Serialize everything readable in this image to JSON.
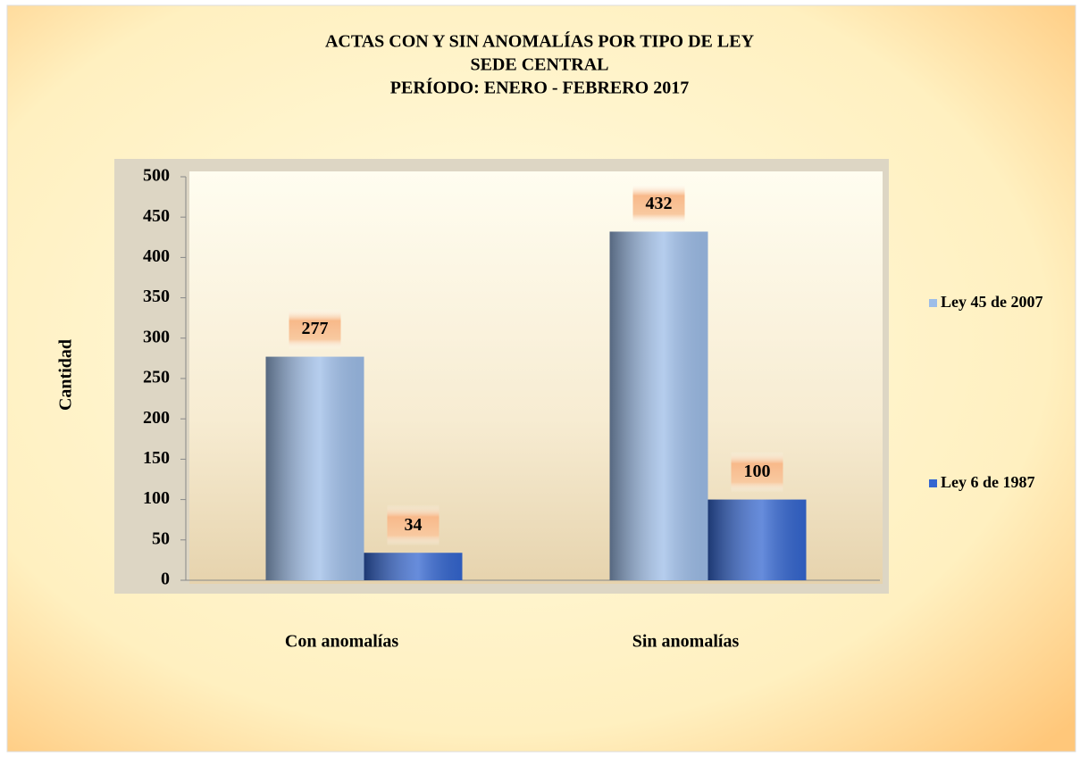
{
  "chart_data": {
    "type": "bar",
    "title": [
      "ACTAS CON Y SIN ANOMALÍAS  POR TIPO DE LEY",
      "SEDE CENTRAL",
      "PERÍODO: ENERO  - FEBRERO 2017"
    ],
    "y_label": "Cantidad",
    "categories": [
      "Con anomalías",
      "Sin anomalías"
    ],
    "series": [
      {
        "name": "Ley 45 de 2007",
        "color": "#9dbde8",
        "values": [
          277,
          432
        ]
      },
      {
        "name": "Ley 6 de  1987",
        "color": "#3466d0",
        "values": [
          34,
          100
        ]
      }
    ],
    "ylim": [
      0,
      500
    ],
    "yticks": [
      0,
      50,
      100,
      150,
      200,
      250,
      300,
      350,
      400,
      450,
      500
    ],
    "legend": "right"
  }
}
